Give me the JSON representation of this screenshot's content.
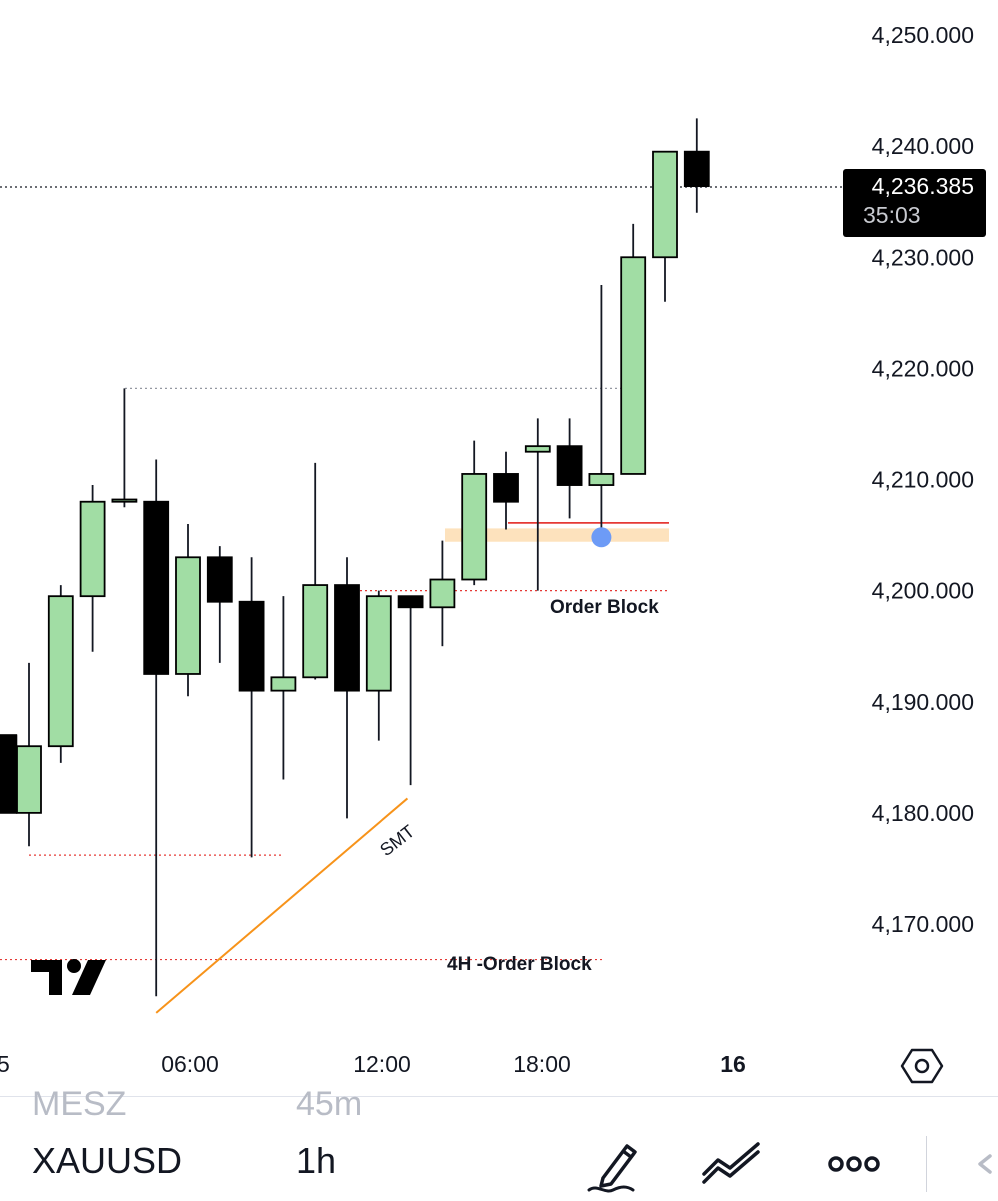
{
  "chart_data": {
    "type": "candlestick",
    "symbol": "XAUUSD",
    "interval": "1h",
    "y_ticks": [
      "4,250.000",
      "4,240.000",
      "4,230.000",
      "4,220.000",
      "4,210.000",
      "4,200.000",
      "4,190.000",
      "4,180.000",
      "4,170.000"
    ],
    "x_ticks": [
      "5",
      "06:00",
      "12:00",
      "18:00",
      "16"
    ],
    "ylim": [
      4161,
      4253
    ],
    "x_tick_hours": [
      0,
      6,
      12,
      18,
      24
    ],
    "last_price": "4,236.385",
    "countdown": "35:03",
    "candles": [
      {
        "t": 0.6,
        "o": 4187.0,
        "h": 4187.0,
        "l": 4180.0,
        "c": 4180.0
      },
      {
        "t": 1.0,
        "o": 4180.0,
        "h": 4193.5,
        "l": 4177.0,
        "c": 4186.0
      },
      {
        "t": 2.0,
        "o": 4186.0,
        "h": 4200.5,
        "l": 4184.5,
        "c": 4199.5
      },
      {
        "t": 3.0,
        "o": 4199.5,
        "h": 4209.5,
        "l": 4194.5,
        "c": 4208.0
      },
      {
        "t": 4.0,
        "o": 4208.0,
        "h": 4218.2,
        "l": 4207.5,
        "c": 4208.2
      },
      {
        "t": 5.0,
        "o": 4208.0,
        "h": 4211.8,
        "l": 4163.5,
        "c": 4192.5
      },
      {
        "t": 6.0,
        "o": 4192.5,
        "h": 4206.0,
        "l": 4190.5,
        "c": 4203.0
      },
      {
        "t": 7.0,
        "o": 4203.0,
        "h": 4204.0,
        "l": 4193.5,
        "c": 4199.0
      },
      {
        "t": 8.0,
        "o": 4199.0,
        "h": 4203.0,
        "l": 4176.0,
        "c": 4191.0
      },
      {
        "t": 9.0,
        "o": 4191.0,
        "h": 4199.5,
        "l": 4183.0,
        "c": 4192.2
      },
      {
        "t": 10.0,
        "o": 4192.2,
        "h": 4211.5,
        "l": 4192.0,
        "c": 4200.5
      },
      {
        "t": 11.0,
        "o": 4200.5,
        "h": 4203.0,
        "l": 4179.5,
        "c": 4191.0
      },
      {
        "t": 12.0,
        "o": 4191.0,
        "h": 4200.0,
        "l": 4186.5,
        "c": 4199.5
      },
      {
        "t": 13.0,
        "o": 4199.5,
        "h": 4199.5,
        "l": 4182.5,
        "c": 4198.5
      },
      {
        "t": 14.0,
        "o": 4198.5,
        "h": 4204.5,
        "l": 4195.0,
        "c": 4201.0
      },
      {
        "t": 15.0,
        "o": 4201.0,
        "h": 4213.5,
        "l": 4200.5,
        "c": 4210.5
      },
      {
        "t": 16.0,
        "o": 4210.5,
        "h": 4212.5,
        "l": 4205.5,
        "c": 4208.0
      },
      {
        "t": 17.0,
        "o": 4212.5,
        "h": 4215.5,
        "l": 4200.0,
        "c": 4213.0
      },
      {
        "t": 18.0,
        "o": 4213.0,
        "h": 4215.5,
        "l": 4206.5,
        "c": 4209.5
      },
      {
        "t": 19.0,
        "o": 4209.5,
        "h": 4227.5,
        "l": 4204.5,
        "c": 4210.5
      },
      {
        "t": 20.0,
        "o": 4210.5,
        "h": 4233.0,
        "l": 4210.5,
        "c": 4230.0
      },
      {
        "t": 21.0,
        "o": 4230.0,
        "h": 4239.5,
        "l": 4226.0,
        "c": 4239.5
      },
      {
        "t": 22.0,
        "o": 4239.5,
        "h": 4242.5,
        "l": 4234.0,
        "c": 4236.4
      }
    ],
    "annotations": {
      "order_block_label": "Order Block",
      "h4_order_block_label": "4H -Order Block",
      "smt_label": "SMT",
      "order_block_zone": [
        4204.4,
        4205.6
      ],
      "order_block_level": 4200.0,
      "order_block_red_line": 4206.1,
      "h4_order_block_level": 4166.8,
      "sell_side_low_level": 4176.2,
      "high_level": 4218.2,
      "smt_line": {
        "from": {
          "t": 5.0,
          "p": 4162.0
        },
        "to": {
          "t": 12.9,
          "p": 4181.3
        }
      },
      "marker_point": {
        "t": 19.0,
        "p": 4204.8
      }
    },
    "colors": {
      "bull": "#a1dda4",
      "bear": "#000000",
      "border": "#000000",
      "zone": "#fde2bd",
      "red_level": "#e53935",
      "smt": "#f7931a",
      "marker": "#6d9bf6",
      "dotted_red": "#e53935",
      "dotted_gray": "#9598a1"
    }
  },
  "toolbar": {
    "symbol": "XAUUSD",
    "interval": "1h",
    "ghost_left": "MESZ",
    "ghost_right": "45m",
    "icons": [
      "pencil-icon",
      "trend-lines-icon",
      "more-icon",
      "back-icon"
    ]
  }
}
